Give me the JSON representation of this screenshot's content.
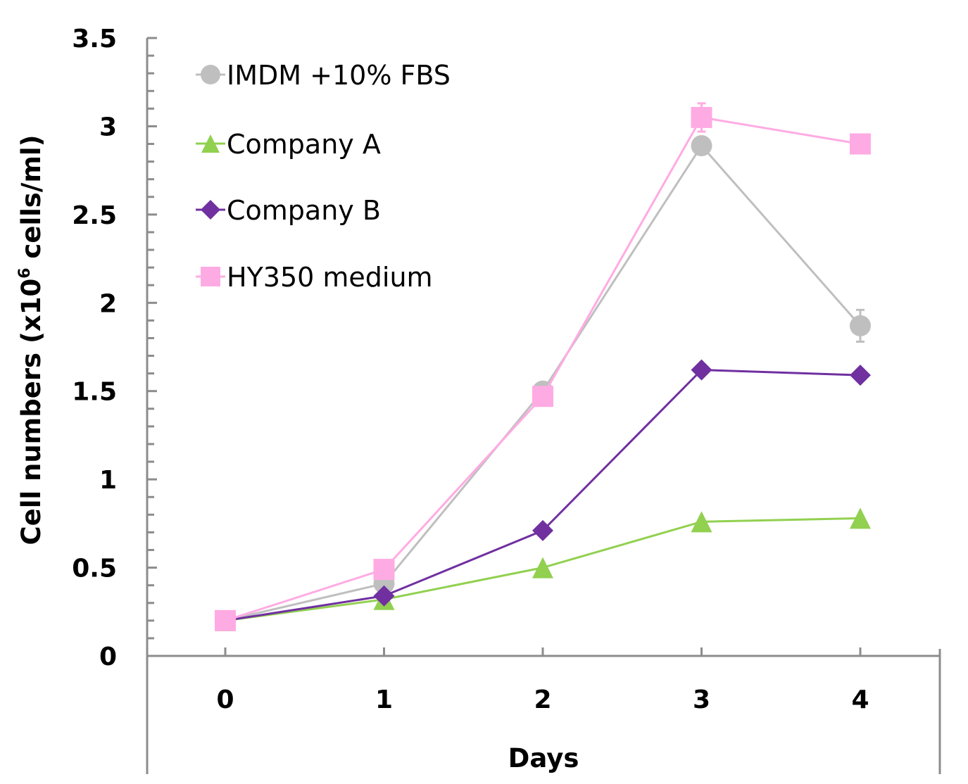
{
  "chart_data": {
    "type": "line",
    "title": "",
    "xlabel": "Days",
    "ylabel": "Cell numbers (x10^6 cells/ml)",
    "ylabel_parts": {
      "before": "Cell numbers (x10",
      "superscript": "6",
      "after": " cells/ml)"
    },
    "x": [
      0,
      1,
      2,
      3,
      4
    ],
    "x_tick_labels": [
      "0",
      "1",
      "2",
      "3",
      "4"
    ],
    "ylim": [
      0,
      3.5
    ],
    "y_major_step": 0.5,
    "y_minor_step": 0.1,
    "y_tick_labels": [
      "0",
      "0.5",
      "1",
      "1.5",
      "2",
      "2.5",
      "3",
      "3.5"
    ],
    "grid": false,
    "legend_position": "top-left",
    "series": [
      {
        "name": "IMDM +10% FBS",
        "marker": "circle",
        "color": "#BFBFBF",
        "values": [
          0.2,
          0.41,
          1.5,
          2.89,
          1.87
        ],
        "errors": [
          0.01,
          0.02,
          0.02,
          0.05,
          0.09
        ]
      },
      {
        "name": "Company A",
        "marker": "triangle",
        "color": "#92D050",
        "values": [
          0.2,
          0.32,
          0.5,
          0.76,
          0.78
        ],
        "errors": [
          0.0,
          0.0,
          0.0,
          0.0,
          0.0
        ]
      },
      {
        "name": "Company B",
        "marker": "diamond",
        "color": "#7030A0",
        "values": [
          0.2,
          0.34,
          0.71,
          1.62,
          1.59
        ],
        "errors": [
          0.0,
          0.0,
          0.0,
          0.0,
          0.0
        ]
      },
      {
        "name": "HY350 medium",
        "marker": "square",
        "color": "#FFABE3",
        "values": [
          0.2,
          0.49,
          1.47,
          3.05,
          2.9
        ],
        "errors": [
          0.0,
          0.0,
          0.0,
          0.08,
          0.03
        ]
      }
    ]
  }
}
